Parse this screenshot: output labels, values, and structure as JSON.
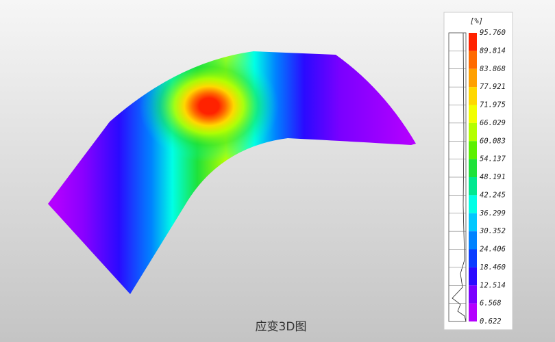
{
  "legend": {
    "unit": "[%]",
    "labels": [
      "95.760",
      "89.814",
      "83.868",
      "77.921",
      "71.975",
      "66.029",
      "60.083",
      "54.137",
      "48.191",
      "42.245",
      "36.299",
      "30.352",
      "24.406",
      "18.460",
      "12.514",
      "6.568",
      "0.622"
    ],
    "colors": [
      "#ff2200",
      "#ff6a00",
      "#ffa000",
      "#ffd800",
      "#f2ff00",
      "#b4ff00",
      "#5cf000",
      "#1ee23a",
      "#00e890",
      "#00ffe6",
      "#00c8ff",
      "#0082ff",
      "#0a3cff",
      "#2a0aff",
      "#7a00ff",
      "#b400ff"
    ]
  },
  "caption": "应变3D图"
}
